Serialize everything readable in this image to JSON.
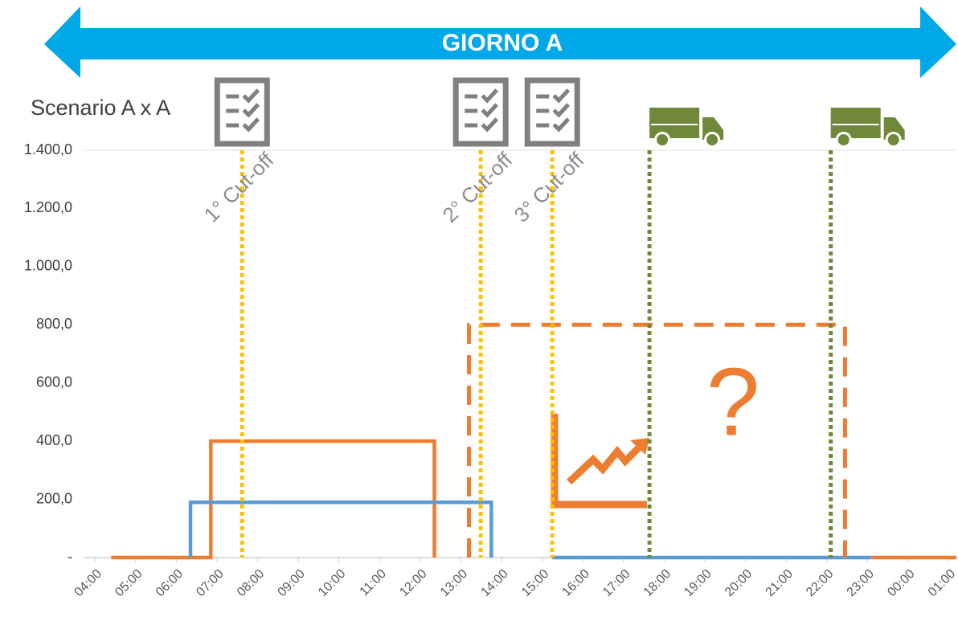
{
  "chart_data": {
    "type": "line",
    "title": "GIORNO A",
    "subtitle": "Scenario A x A",
    "annotation": "?",
    "xlim": [
      3.74,
      25.19
    ],
    "xticks": [
      {
        "value": 4,
        "label": "04:00"
      },
      {
        "value": 5,
        "label": "05:00"
      },
      {
        "value": 6,
        "label": "06:00"
      },
      {
        "value": 7,
        "label": "07:00"
      },
      {
        "value": 8,
        "label": "08:00"
      },
      {
        "value": 9,
        "label": "09:00"
      },
      {
        "value": 10,
        "label": "10:00"
      },
      {
        "value": 11,
        "label": "11:00"
      },
      {
        "value": 12,
        "label": "12:00"
      },
      {
        "value": 13,
        "label": "13:00"
      },
      {
        "value": 14,
        "label": "14:00"
      },
      {
        "value": 15,
        "label": "15:00"
      },
      {
        "value": 16,
        "label": "16:00"
      },
      {
        "value": 17,
        "label": "17:00"
      },
      {
        "value": 18,
        "label": "18:00"
      },
      {
        "value": 19,
        "label": "19:00"
      },
      {
        "value": 20,
        "label": "20:00"
      },
      {
        "value": 21,
        "label": "21:00"
      },
      {
        "value": 22,
        "label": "22:00"
      },
      {
        "value": 23,
        "label": "23:00"
      },
      {
        "value": 24,
        "label": "00:00"
      },
      {
        "value": 25,
        "label": "01:00"
      }
    ],
    "ylim": [
      0,
      1400
    ],
    "yticks": [
      {
        "value": 0,
        "label": "-"
      },
      {
        "value": 200,
        "label": "200,0"
      },
      {
        "value": 400,
        "label": "400,0"
      },
      {
        "value": 600,
        "label": "600,0"
      },
      {
        "value": 800,
        "label": "800,0"
      },
      {
        "value": 1000,
        "label": "1.000,0"
      },
      {
        "value": 1200,
        "label": "1.200,0"
      },
      {
        "value": 1400,
        "label": "1.400,0"
      }
    ],
    "series": [
      {
        "color": "#ed7d31",
        "style": "solid",
        "x": [
          4.4,
          6.85,
          6.85,
          12.35,
          12.35,
          null,
          23.1,
          25.19
        ],
        "values": [
          0,
          0,
          400,
          400,
          0,
          null,
          0,
          0
        ]
      },
      {
        "color": "#5b9bd5",
        "style": "solid",
        "x": [
          6.35,
          6.35,
          13.75,
          13.75,
          null,
          15.25,
          23.1
        ],
        "values": [
          0,
          190,
          190,
          0,
          null,
          0,
          0
        ]
      },
      {
        "color": "#ed7d31",
        "style": "dashed",
        "x": [
          13.2,
          13.2,
          22.45,
          22.45
        ],
        "values": [
          0,
          800,
          800,
          0
        ]
      }
    ],
    "vlines": [
      {
        "x": 7.62,
        "color": "#ffc000",
        "label": "1° Cut-off",
        "icon": "checklist"
      },
      {
        "x": 13.49,
        "color": "#ffc000",
        "label": "2° Cut-off",
        "icon": "checklist"
      },
      {
        "x": 15.25,
        "color": "#ffc000",
        "label": "3° Cut-off",
        "icon": "checklist"
      },
      {
        "x": 17.64,
        "color": "#70883a",
        "icon": "truck"
      },
      {
        "x": 22.1,
        "color": "#70883a",
        "icon": "truck"
      }
    ]
  }
}
